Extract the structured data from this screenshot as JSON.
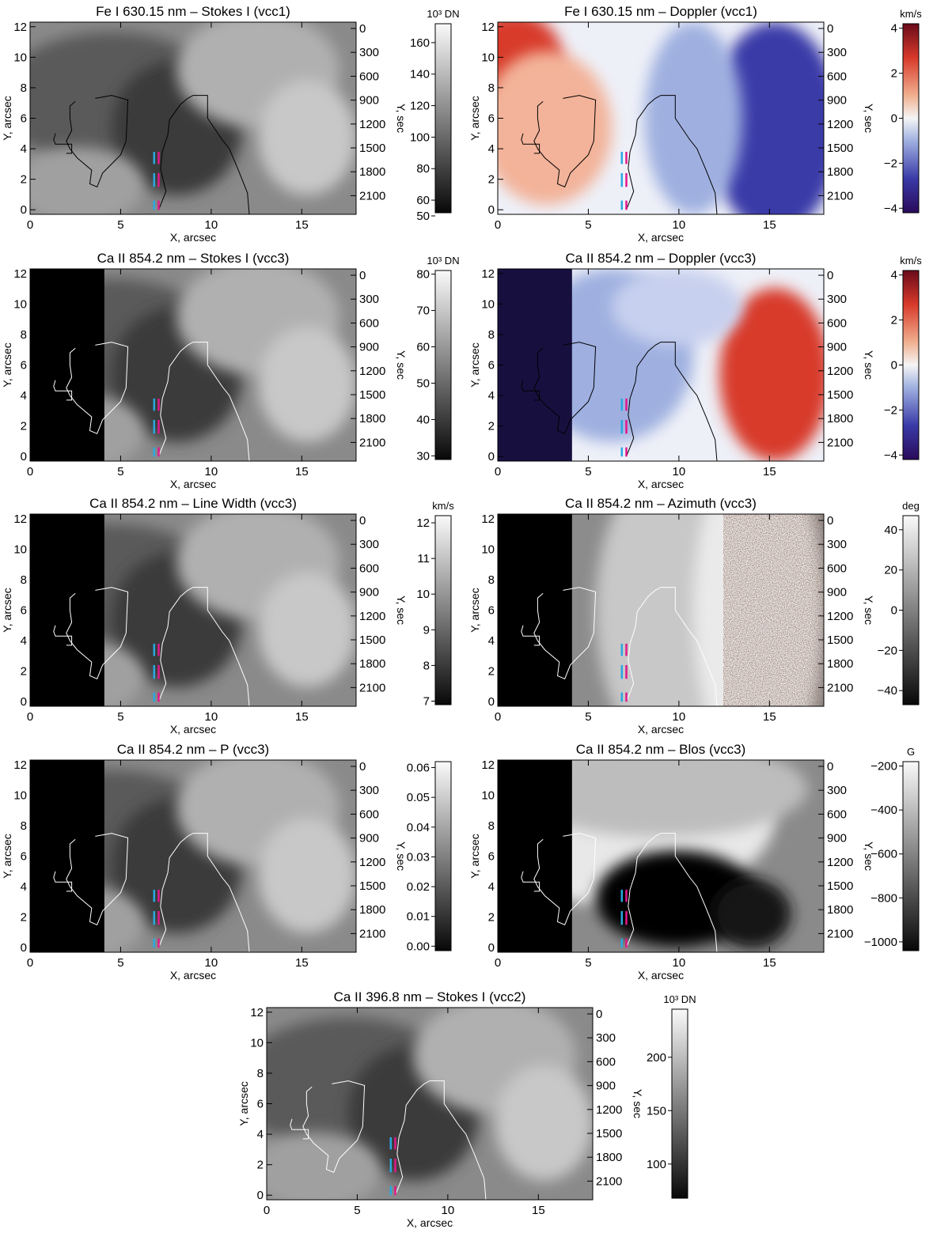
{
  "panels": [
    {
      "title": "Fe I 630.15 nm – Stokes I (vcc1)",
      "cmap": "gray",
      "cbar_unit": "10³ DN",
      "cbar_ticks": [
        "50",
        "60",
        "80",
        "100",
        "120",
        "140",
        "160"
      ],
      "cbar_range": [
        52,
        172
      ],
      "mask_left": false,
      "contour": "black",
      "style": "intensity"
    },
    {
      "title": "Fe I 630.15 nm – Doppler (vcc1)",
      "cmap": "redblue",
      "cbar_unit": "km/s",
      "cbar_ticks": [
        "−4",
        "−2",
        "0",
        "2",
        "4"
      ],
      "cbar_range": [
        -4.2,
        4.2
      ],
      "mask_left": false,
      "contour": "black",
      "style": "doppler1"
    },
    {
      "title": "Ca II 854.2 nm – Stokes I (vcc3)",
      "cmap": "gray",
      "cbar_unit": "10³ DN",
      "cbar_ticks": [
        "30",
        "40",
        "50",
        "60",
        "70",
        "80"
      ],
      "cbar_range": [
        29,
        81
      ],
      "mask_left": true,
      "contour": "white",
      "style": "intensity"
    },
    {
      "title": "Ca II 854.2 nm – Doppler (vcc3)",
      "cmap": "redblue",
      "cbar_unit": "km/s",
      "cbar_ticks": [
        "−4",
        "−2",
        "0",
        "2",
        "4"
      ],
      "cbar_range": [
        -4.2,
        4.2
      ],
      "mask_left": true,
      "contour": "black",
      "style": "doppler3"
    },
    {
      "title": "Ca II 854.2 nm – Line Width (vcc3)",
      "cmap": "gray",
      "cbar_unit": "km/s",
      "cbar_ticks": [
        "7",
        "8",
        "9",
        "10",
        "11",
        "12"
      ],
      "cbar_range": [
        6.9,
        12.2
      ],
      "mask_left": true,
      "contour": "white",
      "style": "intensity"
    },
    {
      "title": "Ca II 854.2 nm – Azimuth (vcc3)",
      "cmap": "gray",
      "cbar_unit": "deg",
      "cbar_ticks": [
        "−40",
        "−20",
        "0",
        "20",
        "40"
      ],
      "cbar_range": [
        -47,
        47
      ],
      "mask_left": true,
      "contour": "white",
      "style": "azimuth"
    },
    {
      "title": "Ca II 854.2 nm – P (vcc3)",
      "cmap": "gray",
      "cbar_unit": "",
      "cbar_ticks": [
        "0.00",
        "0.01",
        "0.02",
        "0.03",
        "0.04",
        "0.05",
        "0.06"
      ],
      "cbar_range": [
        -0.0015,
        0.062
      ],
      "mask_left": true,
      "contour": "white",
      "style": "intensity"
    },
    {
      "title": "Ca II 854.2 nm – Blos (vcc3)",
      "cmap": "gray",
      "cbar_unit": "G",
      "cbar_ticks": [
        "−1000",
        "−800",
        "−600",
        "−400",
        "−200"
      ],
      "cbar_range": [
        -1040,
        -180
      ],
      "mask_left": true,
      "contour": "white",
      "style": "blos"
    },
    {
      "title": "Ca II 396.8 nm – Stokes I (vcc2)",
      "cmap": "gray",
      "cbar_unit": "10³ DN",
      "cbar_ticks": [
        "100",
        "150",
        "200"
      ],
      "cbar_range": [
        68,
        245
      ],
      "mask_left": false,
      "contour": "white",
      "style": "intensity"
    }
  ],
  "axes": {
    "xlabel": "X, arcsec",
    "ylabel": "Y, arcsec",
    "y2label": "Y, sec",
    "xticks": [
      "0",
      "5",
      "10",
      "15"
    ],
    "yticks": [
      "0",
      "2",
      "4",
      "6",
      "8",
      "10",
      "12"
    ],
    "y2ticks": [
      "0",
      "300",
      "600",
      "900",
      "1200",
      "1500",
      "1800",
      "2100"
    ],
    "xlim": [
      0,
      18
    ],
    "ylim": [
      -0.3,
      12.3
    ]
  },
  "colors": {
    "cyan": "#29a9e0",
    "magenta": "#e0188a"
  },
  "chart_data": [
    {
      "type": "heatmap",
      "title": "Fe I 630.15 nm – Stokes I (vcc1)",
      "xlabel": "X, arcsec",
      "ylabel": "Y, arcsec",
      "y2label": "Y, sec",
      "xlim": [
        0,
        18
      ],
      "ylim": [
        -0.3,
        12.3
      ],
      "colorbar": {
        "label": "10³ DN",
        "range": [
          50,
          170
        ]
      }
    },
    {
      "type": "heatmap",
      "title": "Fe I 630.15 nm – Doppler (vcc1)",
      "xlabel": "X, arcsec",
      "ylabel": "Y, arcsec",
      "y2label": "Y, sec",
      "xlim": [
        0,
        18
      ],
      "ylim": [
        -0.3,
        12.3
      ],
      "colorbar": {
        "label": "km/s",
        "range": [
          -4,
          4
        ]
      }
    },
    {
      "type": "heatmap",
      "title": "Ca II 854.2 nm – Stokes I (vcc3)",
      "xlabel": "X, arcsec",
      "ylabel": "Y, arcsec",
      "y2label": "Y, sec",
      "xlim": [
        0,
        18
      ],
      "ylim": [
        -0.3,
        12.3
      ],
      "colorbar": {
        "label": "10³ DN",
        "range": [
          30,
          80
        ]
      }
    },
    {
      "type": "heatmap",
      "title": "Ca II 854.2 nm – Doppler (vcc3)",
      "xlabel": "X, arcsec",
      "ylabel": "Y, arcsec",
      "y2label": "Y, sec",
      "xlim": [
        0,
        18
      ],
      "ylim": [
        -0.3,
        12.3
      ],
      "colorbar": {
        "label": "km/s",
        "range": [
          -4,
          4
        ]
      }
    },
    {
      "type": "heatmap",
      "title": "Ca II 854.2 nm – Line Width (vcc3)",
      "xlabel": "X, arcsec",
      "ylabel": "Y, arcsec",
      "y2label": "Y, sec",
      "xlim": [
        0,
        18
      ],
      "ylim": [
        -0.3,
        12.3
      ],
      "colorbar": {
        "label": "km/s",
        "range": [
          7,
          12
        ]
      }
    },
    {
      "type": "heatmap",
      "title": "Ca II 854.2 nm – Azimuth (vcc3)",
      "xlabel": "X, arcsec",
      "ylabel": "Y, arcsec",
      "y2label": "Y, sec",
      "xlim": [
        0,
        18
      ],
      "ylim": [
        -0.3,
        12.3
      ],
      "colorbar": {
        "label": "deg",
        "range": [
          -40,
          40
        ]
      }
    },
    {
      "type": "heatmap",
      "title": "Ca II 854.2 nm – P (vcc3)",
      "xlabel": "X, arcsec",
      "ylabel": "Y, arcsec",
      "y2label": "Y, sec",
      "xlim": [
        0,
        18
      ],
      "ylim": [
        -0.3,
        12.3
      ],
      "colorbar": {
        "label": "",
        "range": [
          0,
          0.06
        ]
      }
    },
    {
      "type": "heatmap",
      "title": "Ca II 854.2 nm – Blos (vcc3)",
      "xlabel": "X, arcsec",
      "ylabel": "Y, arcsec",
      "y2label": "Y, sec",
      "xlim": [
        0,
        18
      ],
      "ylim": [
        -0.3,
        12.3
      ],
      "colorbar": {
        "label": "G",
        "range": [
          -1000,
          -200
        ]
      }
    },
    {
      "type": "heatmap",
      "title": "Ca II 396.8 nm – Stokes I (vcc2)",
      "xlabel": "X, arcsec",
      "ylabel": "Y, arcsec",
      "y2label": "Y, sec",
      "xlim": [
        0,
        18
      ],
      "ylim": [
        -0.3,
        12.3
      ],
      "colorbar": {
        "label": "10³ DN",
        "range": [
          100,
          200
        ]
      }
    }
  ]
}
